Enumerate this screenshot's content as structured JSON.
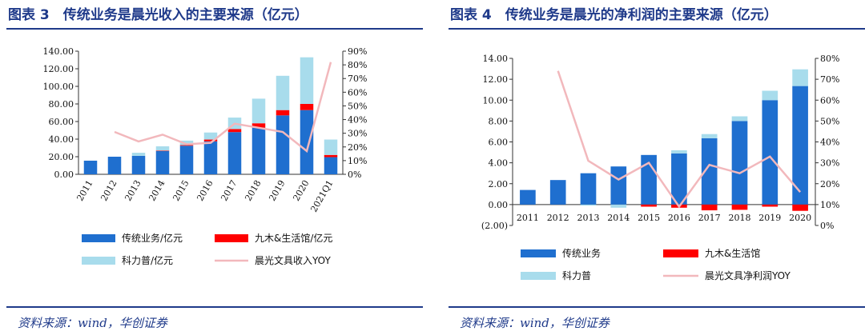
{
  "colors": {
    "accent": "#1f3a8a",
    "traditional": "#1f6fcf",
    "jiumu": "#ff0000",
    "keli": "#a8dcec",
    "yoy": "#f2b8bc"
  },
  "panel1": {
    "title": "图表 3　传统业务是晨光收入的主要来源（亿元）",
    "source": "资料来源：wind，华创证券",
    "chart_data": {
      "type": "bar",
      "stacked": true,
      "categories": [
        "2011",
        "2012",
        "2013",
        "2014",
        "2015",
        "2016",
        "2017",
        "2018",
        "2019",
        "2020",
        "2021Q1"
      ],
      "series": [
        {
          "name": "传统业务/亿元",
          "color": "#1f6fcf",
          "values": [
            15.5,
            20.0,
            21.0,
            26.5,
            32.5,
            37.5,
            48.0,
            53.0,
            67.0,
            73.0,
            19.5
          ]
        },
        {
          "name": "九木&生活馆/亿元",
          "color": "#ff0000",
          "values": [
            0,
            0,
            0,
            0.3,
            0.8,
            2.0,
            3.5,
            5.0,
            6.0,
            7.0,
            2.5
          ]
        },
        {
          "name": "科力普/亿元",
          "color": "#a8dcec",
          "values": [
            0,
            0,
            3.5,
            5.0,
            5.0,
            8.0,
            13.0,
            28.0,
            39.0,
            53.0,
            17.5
          ]
        }
      ],
      "line": {
        "name": "晨光文具收入YOY",
        "color": "#f2b8bc",
        "axis": "right",
        "values": [
          null,
          31,
          24,
          29,
          22,
          23,
          37,
          34,
          31,
          17,
          82
        ]
      },
      "ylim": [
        0,
        140
      ],
      "yticks": [
        "0.00",
        "20.00",
        "40.00",
        "60.00",
        "80.00",
        "100.00",
        "120.00",
        "140.00"
      ],
      "y2lim": [
        0,
        90
      ],
      "y2ticks": [
        "0%",
        "10%",
        "20%",
        "30%",
        "40%",
        "50%",
        "60%",
        "70%",
        "80%",
        "90%"
      ],
      "legend": [
        "传统业务/亿元",
        "九木&生活馆/亿元",
        "科力普/亿元",
        "晨光文具收入YOY"
      ]
    }
  },
  "panel2": {
    "title": "图表 4　传统业务是晨光的净利润的主要来源（亿元）",
    "source": "资料来源：wind，华创证券",
    "chart_data": {
      "type": "bar",
      "stacked": true,
      "categories": [
        "2011",
        "2012",
        "2013",
        "2014",
        "2015",
        "2016",
        "2017",
        "2018",
        "2019",
        "2020"
      ],
      "series": [
        {
          "name": "传统业务",
          "color": "#1f6fcf",
          "values": [
            1.4,
            2.35,
            3.0,
            3.65,
            4.75,
            4.9,
            6.35,
            8.0,
            10.0,
            11.35
          ]
        },
        {
          "name": "九木&生活馆",
          "color": "#ff0000",
          "values": [
            0,
            0,
            0,
            0,
            -0.2,
            -0.3,
            -0.55,
            -0.5,
            -0.2,
            -0.6
          ]
        },
        {
          "name": "科力普",
          "color": "#a8dcec",
          "values": [
            0,
            0,
            -0.1,
            -0.3,
            0,
            0.3,
            0.4,
            0.45,
            0.9,
            1.6
          ]
        }
      ],
      "line": {
        "name": "晨光文具净利润YOY",
        "color": "#f2b8bc",
        "axis": "right",
        "values": [
          null,
          74,
          31,
          22,
          30,
          9,
          29,
          25,
          33,
          16
        ]
      },
      "ylim": [
        -2,
        14
      ],
      "yticks": [
        "(2.00)",
        "0.00",
        "2.00",
        "4.00",
        "6.00",
        "8.00",
        "10.00",
        "12.00",
        "14.00"
      ],
      "y2lim": [
        0,
        80
      ],
      "y2ticks": [
        "0%",
        "10%",
        "20%",
        "30%",
        "40%",
        "50%",
        "60%",
        "70%",
        "80%"
      ],
      "legend": [
        "传统业务",
        "九木&生活馆",
        "科力普",
        "晨光文具净利润YOY"
      ]
    }
  }
}
